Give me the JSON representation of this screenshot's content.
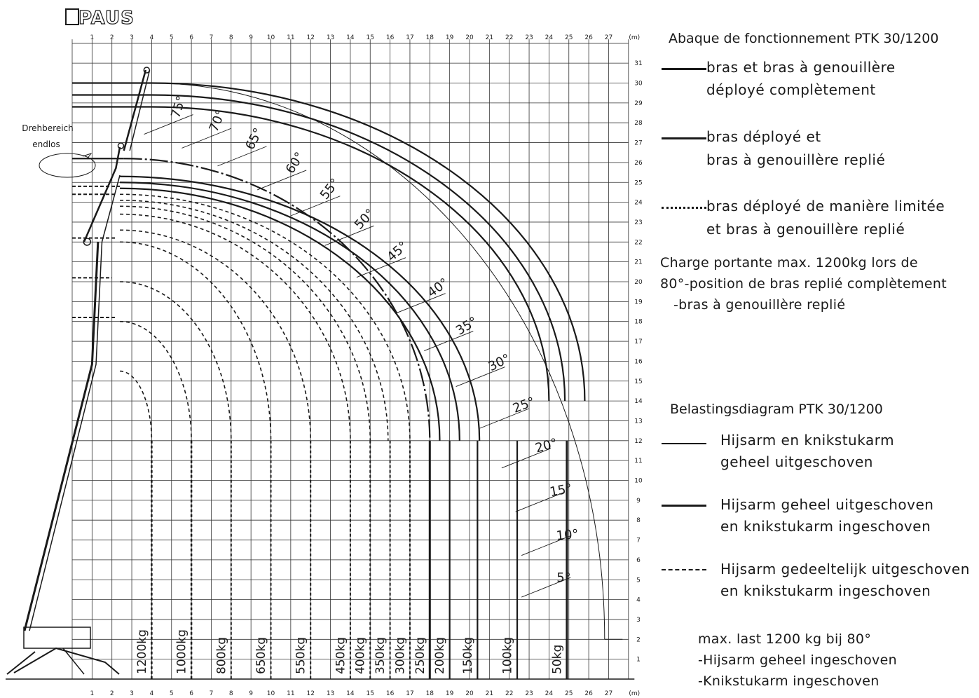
{
  "brand": "PAUS",
  "unit_label": "(m)",
  "rotation_label_lines": [
    "Drehbereich",
    "endlos"
  ],
  "x_ticks": [
    "1",
    "2",
    "3",
    "4",
    "5",
    "6",
    "7",
    "8",
    "9",
    "10",
    "11",
    "12",
    "13",
    "14",
    "15",
    "16",
    "17",
    "18",
    "19",
    "20",
    "21",
    "22",
    "23",
    "24",
    "25",
    "26",
    "27"
  ],
  "y_ticks": [
    "1",
    "2",
    "3",
    "4",
    "5",
    "6",
    "7",
    "8",
    "9",
    "10",
    "11",
    "12",
    "13",
    "14",
    "15",
    "16",
    "17",
    "18",
    "19",
    "20",
    "21",
    "22",
    "23",
    "24",
    "25",
    "26",
    "27",
    "28",
    "29",
    "30",
    "31"
  ],
  "angle_labels": [
    "5°",
    "10°",
    "15°",
    "20°",
    "25°",
    "30°",
    "35°",
    "40°",
    "45°",
    "50°",
    "55°",
    "60°",
    "65°",
    "70°",
    "75°"
  ],
  "load_labels": [
    "1200kg",
    "1000kg",
    "800kg",
    "650kg",
    "550kg",
    "450kg",
    "400kg",
    "350kg",
    "300kg",
    "250kg",
    "200kg",
    "150kg",
    "100kg",
    "50kg"
  ],
  "legend_fr": {
    "title": "Abaque de fonctionnement PTK 30/1200",
    "items": [
      {
        "lines": [
          "bras et bras à genouillère",
          "déployé complètement"
        ],
        "style": "solid"
      },
      {
        "lines": [
          "bras déployé et",
          "bras à genouillère replié"
        ],
        "style": "dashdot"
      },
      {
        "lines": [
          "bras déployé de manière limitée",
          "et bras à genouillère replié"
        ],
        "style": "dotted"
      }
    ],
    "note": [
      "Charge portante max. 1200kg lors de",
      "80°-position de bras replié complètement",
      "   -bras à genouillère replié"
    ]
  },
  "legend_nl": {
    "title": "Belastingsdiagram PTK 30/1200",
    "items": [
      {
        "lines": [
          "Hijsarm en knikstukarm",
          "geheel uitgeschoven"
        ],
        "style": "solid"
      },
      {
        "lines": [
          "Hijsarm geheel uitgeschoven",
          "en knikstukarm ingeschoven"
        ],
        "style": "dashdot"
      },
      {
        "lines": [
          "Hijsarm gedeeltelijk uitgeschoven",
          "en knikstukarm ingeschoven"
        ],
        "style": "dotted"
      }
    ],
    "note": [
      "max. last 1200 kg bij 80°",
      "-Hijsarm geheel ingeschoven",
      "-Knikstukarm ingeschoven"
    ]
  },
  "colors": {
    "ink": "#1a1a1a",
    "grid": "#333333",
    "paper": "#ffffff"
  }
}
